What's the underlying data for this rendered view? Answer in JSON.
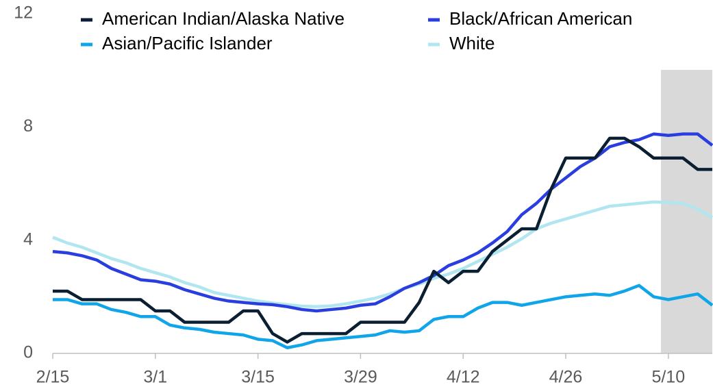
{
  "chart_data": {
    "type": "line",
    "x": [
      0,
      2,
      4,
      6,
      8,
      10,
      12,
      14,
      16,
      18,
      20,
      22,
      24,
      26,
      28,
      30,
      32,
      34,
      36,
      38,
      40,
      42,
      44,
      46,
      48,
      50,
      52,
      54,
      56,
      58,
      60,
      62,
      64,
      66,
      68,
      70,
      72,
      74,
      76,
      78,
      80,
      82,
      84,
      86,
      88,
      90
    ],
    "xlim": [
      0,
      90
    ],
    "xticks": [
      {
        "value": 0,
        "label": "2/15"
      },
      {
        "value": 14,
        "label": "3/1"
      },
      {
        "value": 28,
        "label": "3/15"
      },
      {
        "value": 42,
        "label": "3/29"
      },
      {
        "value": 56,
        "label": "4/12"
      },
      {
        "value": 70,
        "label": "4/26"
      },
      {
        "value": 84,
        "label": "5/10"
      }
    ],
    "ylim": [
      0,
      12
    ],
    "yticks": [
      0,
      4,
      8,
      12
    ],
    "shaded_range": [
      83,
      90
    ],
    "series": [
      {
        "name": "American Indian/Alaska Native",
        "color": "#0b1f33",
        "values": [
          2.2,
          2.2,
          1.9,
          1.9,
          1.9,
          1.9,
          1.9,
          1.5,
          1.5,
          1.1,
          1.1,
          1.1,
          1.1,
          1.5,
          1.5,
          0.7,
          0.4,
          0.7,
          0.7,
          0.7,
          0.7,
          1.1,
          1.1,
          1.1,
          1.1,
          1.8,
          2.9,
          2.5,
          2.9,
          2.9,
          3.6,
          4.0,
          4.4,
          4.4,
          5.8,
          6.9,
          6.9,
          6.9,
          7.6,
          7.6,
          7.3,
          6.9,
          6.9,
          6.9,
          6.5,
          6.5
        ]
      },
      {
        "name": "Black/African American",
        "color": "#2a3ee0",
        "values": [
          3.6,
          3.55,
          3.45,
          3.3,
          3.0,
          2.8,
          2.6,
          2.55,
          2.45,
          2.25,
          2.1,
          1.95,
          1.85,
          1.8,
          1.75,
          1.72,
          1.65,
          1.55,
          1.5,
          1.55,
          1.6,
          1.7,
          1.75,
          2.0,
          2.3,
          2.5,
          2.75,
          3.1,
          3.3,
          3.55,
          3.9,
          4.3,
          4.9,
          5.3,
          5.8,
          6.2,
          6.6,
          6.9,
          7.3,
          7.45,
          7.55,
          7.75,
          7.7,
          7.75,
          7.75,
          7.35
        ]
      },
      {
        "name": "Asian/Pacific Islander",
        "color": "#10a5e8",
        "values": [
          1.9,
          1.9,
          1.75,
          1.75,
          1.55,
          1.45,
          1.3,
          1.3,
          1.0,
          0.9,
          0.85,
          0.75,
          0.7,
          0.65,
          0.5,
          0.45,
          0.2,
          0.3,
          0.45,
          0.5,
          0.55,
          0.6,
          0.65,
          0.8,
          0.75,
          0.8,
          1.2,
          1.3,
          1.3,
          1.6,
          1.8,
          1.8,
          1.7,
          1.8,
          1.9,
          2.0,
          2.05,
          2.1,
          2.05,
          2.2,
          2.4,
          2.0,
          1.9,
          2.0,
          2.1,
          1.7
        ]
      },
      {
        "name": "White",
        "color": "#b0e6f0",
        "values": [
          4.1,
          3.9,
          3.75,
          3.55,
          3.35,
          3.2,
          3.0,
          2.85,
          2.7,
          2.5,
          2.35,
          2.15,
          2.05,
          1.95,
          1.85,
          1.78,
          1.72,
          1.67,
          1.65,
          1.68,
          1.75,
          1.85,
          1.95,
          2.1,
          2.3,
          2.45,
          2.65,
          2.8,
          3.0,
          3.25,
          3.5,
          3.75,
          4.05,
          4.4,
          4.6,
          4.75,
          4.9,
          5.05,
          5.2,
          5.25,
          5.3,
          5.35,
          5.33,
          5.3,
          5.1,
          4.8
        ]
      }
    ]
  }
}
